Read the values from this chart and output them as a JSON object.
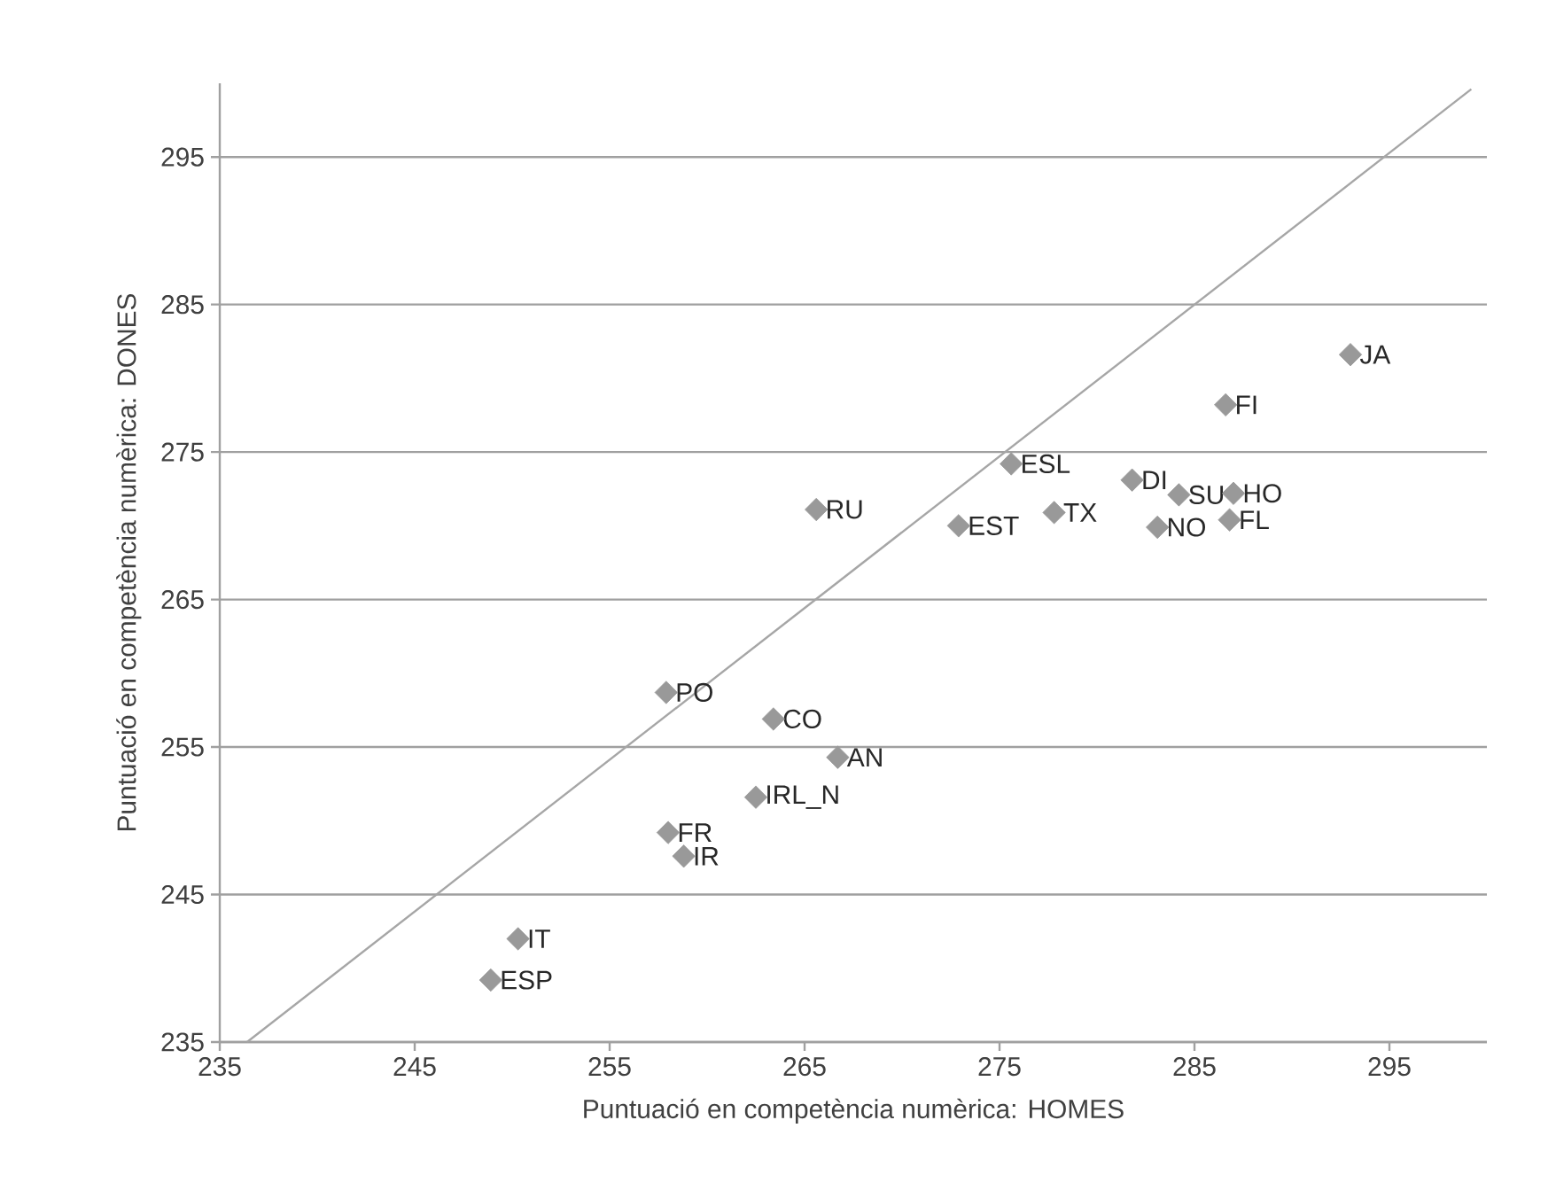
{
  "chart_data": {
    "type": "scatter",
    "xlabel": "Puntuació en competència numèrica: HOMES",
    "ylabel": "Puntuació en competència numèrica: DONES",
    "xlim": [
      235,
      300
    ],
    "ylim": [
      235,
      300
    ],
    "xticks": [
      235,
      245,
      255,
      265,
      275,
      285,
      295
    ],
    "yticks": [
      235,
      245,
      255,
      265,
      275,
      285,
      295
    ],
    "grid": "y",
    "marker": "diamond",
    "series": [
      {
        "color": "#999999",
        "x": [
          257.9,
          248.9,
          250.3,
          258.0,
          258.8,
          262.5,
          263.4,
          266.7,
          265.6,
          272.9,
          275.6,
          277.8,
          281.8,
          284.2,
          283.1,
          287.0,
          286.8,
          286.6,
          293.0
        ],
        "values": [
          258.7,
          239.2,
          242.0,
          249.2,
          247.6,
          251.6,
          256.9,
          254.3,
          271.1,
          270.0,
          274.2,
          270.9,
          273.1,
          272.1,
          269.9,
          272.2,
          270.4,
          278.2,
          281.6
        ]
      },
      {
        "type": "line",
        "color": "#a6a6a6",
        "marker": "none",
        "x": [
          236.4,
          299.2
        ],
        "values": [
          235,
          299.6
        ]
      }
    ],
    "annotations": [
      {
        "text": "PO",
        "x": 257.9,
        "y": 258.7
      },
      {
        "text": "ESP",
        "x": 248.9,
        "y": 239.2
      },
      {
        "text": "IT",
        "x": 250.3,
        "y": 242.0
      },
      {
        "text": "FR",
        "x": 258.0,
        "y": 249.2
      },
      {
        "text": "IR",
        "x": 258.8,
        "y": 247.6
      },
      {
        "text": "IRL_N",
        "x": 262.5,
        "y": 251.6
      },
      {
        "text": "CO",
        "x": 263.4,
        "y": 256.9
      },
      {
        "text": "AN",
        "x": 266.7,
        "y": 254.3
      },
      {
        "text": "RU",
        "x": 265.6,
        "y": 271.1
      },
      {
        "text": "EST",
        "x": 272.9,
        "y": 270.0
      },
      {
        "text": "ESL",
        "x": 275.6,
        "y": 274.2
      },
      {
        "text": "TX",
        "x": 277.8,
        "y": 270.9
      },
      {
        "text": "DI",
        "x": 281.8,
        "y": 273.1
      },
      {
        "text": "SU",
        "x": 284.2,
        "y": 272.1
      },
      {
        "text": "NO",
        "x": 283.1,
        "y": 269.9
      },
      {
        "text": "HO",
        "x": 287.0,
        "y": 272.2
      },
      {
        "text": "FL",
        "x": 286.8,
        "y": 270.4
      },
      {
        "text": "FI",
        "x": 286.6,
        "y": 278.2
      },
      {
        "text": "JA",
        "x": 293.0,
        "y": 281.6
      }
    ]
  }
}
